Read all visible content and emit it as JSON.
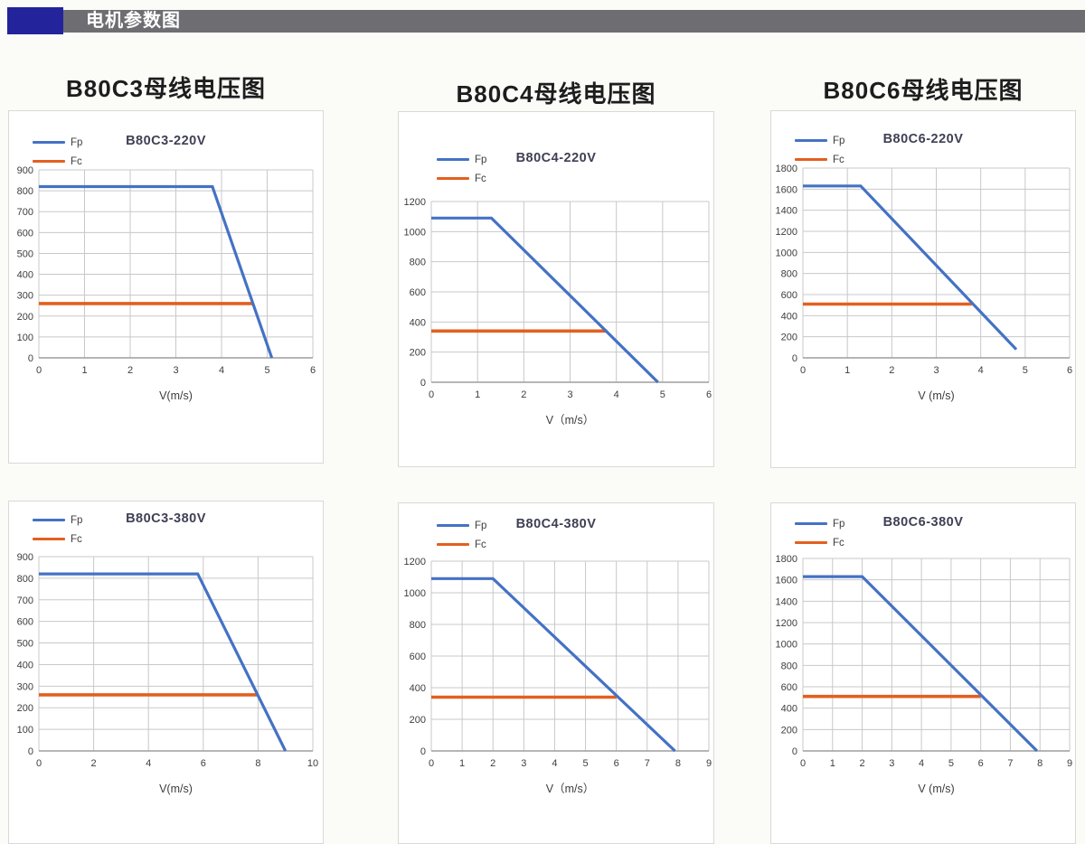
{
  "header": {
    "title": "电机参数图"
  },
  "section_titles": [
    "B80C3母线电压图",
    "B80C4母线电压图",
    "B80C6母线电压图"
  ],
  "legend": {
    "fp": "Fp",
    "fc": "Fc"
  },
  "colors": {
    "fp": "#4472C4",
    "fc": "#E2601F",
    "grid": "#c8c8c8",
    "axis": "#9e9e9e",
    "tick_text": "#3d3d3d",
    "header_bar": "#6d6d72",
    "header_accent": "#23239B"
  },
  "chart_data": [
    {
      "type": "line",
      "title": "B80C3-220V",
      "xlabel": "V(m/s)",
      "xlim": [
        0,
        6
      ],
      "xstep": 1,
      "ylim": [
        0,
        900
      ],
      "ystep": 100,
      "grid": true,
      "legend_position": "top-left",
      "series": [
        {
          "name": "Fp",
          "color": "fp",
          "points": [
            [
              0,
              820
            ],
            [
              3.8,
              820
            ],
            [
              5.1,
              0
            ]
          ]
        },
        {
          "name": "Fc",
          "color": "fc",
          "points": [
            [
              0,
              260
            ],
            [
              4.7,
              260
            ]
          ]
        }
      ]
    },
    {
      "type": "line",
      "title": "B80C4-220V",
      "xlabel": "V（m/s）",
      "xlim": [
        0,
        6
      ],
      "xstep": 1,
      "ylim": [
        0,
        1200
      ],
      "ystep": 200,
      "grid": true,
      "legend_position": "top-left",
      "series": [
        {
          "name": "Fp",
          "color": "fp",
          "points": [
            [
              0,
              1090
            ],
            [
              1.3,
              1090
            ],
            [
              4.9,
              0
            ]
          ]
        },
        {
          "name": "Fc",
          "color": "fc",
          "points": [
            [
              0,
              340
            ],
            [
              3.8,
              340
            ]
          ]
        }
      ]
    },
    {
      "type": "line",
      "title": "B80C6-220V",
      "xlabel": "V (m/s)",
      "xlim": [
        0,
        6
      ],
      "xstep": 1,
      "ylim": [
        0,
        1800
      ],
      "ystep": 200,
      "grid": true,
      "legend_position": "top-left",
      "series": [
        {
          "name": "Fp",
          "color": "fp",
          "points": [
            [
              0,
              1630
            ],
            [
              1.3,
              1630
            ],
            [
              4.8,
              80
            ]
          ]
        },
        {
          "name": "Fc",
          "color": "fc",
          "points": [
            [
              0,
              510
            ],
            [
              3.8,
              510
            ]
          ]
        }
      ]
    },
    {
      "type": "line",
      "title": "B80C3-380V",
      "xlabel": "V(m/s)",
      "xlim": [
        0,
        10
      ],
      "xstep": 2,
      "ylim": [
        0,
        900
      ],
      "ystep": 100,
      "grid": true,
      "legend_position": "top-left",
      "series": [
        {
          "name": "Fp",
          "color": "fp",
          "points": [
            [
              0,
              820
            ],
            [
              5.8,
              820
            ],
            [
              9,
              0
            ]
          ]
        },
        {
          "name": "Fc",
          "color": "fc",
          "points": [
            [
              0,
              260
            ],
            [
              8,
              260
            ]
          ]
        }
      ]
    },
    {
      "type": "line",
      "title": "B80C4-380V",
      "xlabel": "V（m/s）",
      "xlim": [
        0,
        9
      ],
      "xstep": 1,
      "ylim": [
        0,
        1200
      ],
      "ystep": 200,
      "grid": true,
      "legend_position": "top-left",
      "series": [
        {
          "name": "Fp",
          "color": "fp",
          "points": [
            [
              0,
              1090
            ],
            [
              2,
              1090
            ],
            [
              7.9,
              0
            ]
          ]
        },
        {
          "name": "Fc",
          "color": "fc",
          "points": [
            [
              0,
              340
            ],
            [
              6,
              340
            ]
          ]
        }
      ]
    },
    {
      "type": "line",
      "title": "B80C6-380V",
      "xlabel": "V (m/s)",
      "xlim": [
        0,
        9
      ],
      "xstep": 1,
      "ylim": [
        0,
        1800
      ],
      "ystep": 200,
      "grid": true,
      "legend_position": "top-left",
      "series": [
        {
          "name": "Fp",
          "color": "fp",
          "points": [
            [
              0,
              1630
            ],
            [
              2,
              1630
            ],
            [
              7.9,
              0
            ]
          ]
        },
        {
          "name": "Fc",
          "color": "fc",
          "points": [
            [
              0,
              510
            ],
            [
              6,
              510
            ]
          ]
        }
      ]
    }
  ]
}
